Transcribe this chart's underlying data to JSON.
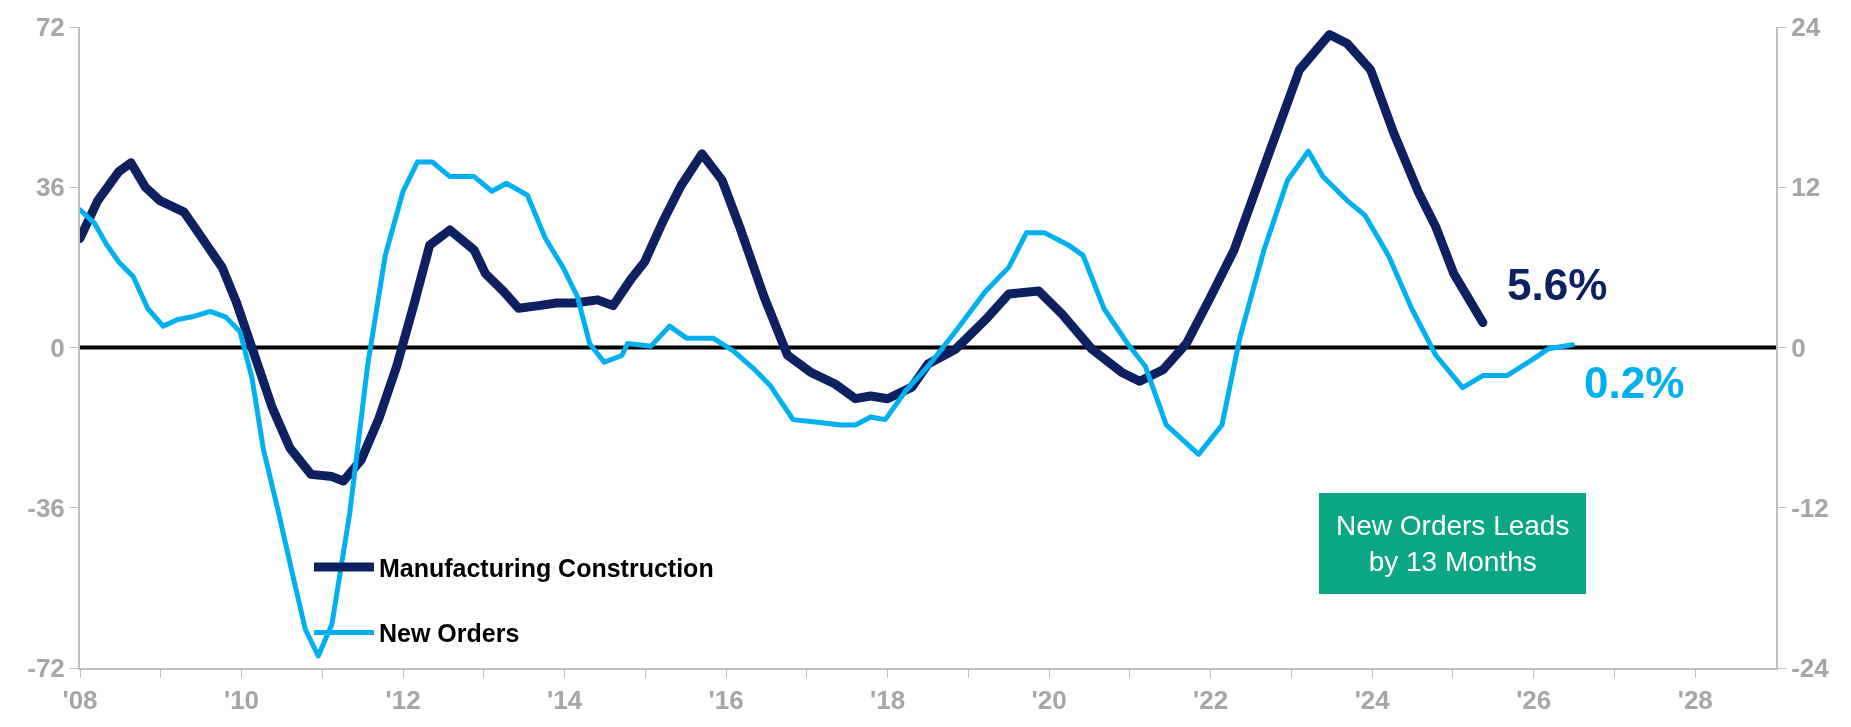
{
  "chart_data": {
    "type": "line",
    "xlim": [
      2008,
      2029
    ],
    "xticks": [
      {
        "value": 2008,
        "label": "'08"
      },
      {
        "value": 2009,
        "label": null
      },
      {
        "value": 2010,
        "label": "'10"
      },
      {
        "value": 2011,
        "label": null
      },
      {
        "value": 2012,
        "label": "'12"
      },
      {
        "value": 2013,
        "label": null
      },
      {
        "value": 2014,
        "label": "'14"
      },
      {
        "value": 2015,
        "label": null
      },
      {
        "value": 2016,
        "label": "'16"
      },
      {
        "value": 2017,
        "label": null
      },
      {
        "value": 2018,
        "label": "'18"
      },
      {
        "value": 2019,
        "label": null
      },
      {
        "value": 2020,
        "label": "'20"
      },
      {
        "value": 2021,
        "label": null
      },
      {
        "value": 2022,
        "label": "'22"
      },
      {
        "value": 2023,
        "label": null
      },
      {
        "value": 2024,
        "label": "'24"
      },
      {
        "value": 2025,
        "label": null
      },
      {
        "value": 2026,
        "label": "'26"
      },
      {
        "value": 2027,
        "label": null
      },
      {
        "value": 2028,
        "label": "'28"
      }
    ],
    "ylim": [
      -72,
      72
    ],
    "yticks": [
      -72,
      -36,
      0,
      36,
      72
    ],
    "y2lim": [
      -24,
      24
    ],
    "y2ticks": [
      -24,
      -12,
      0,
      12,
      24
    ],
    "grid": false,
    "legend": "bottom left",
    "marker": "none",
    "line_style": "solid",
    "ref_lines": [
      {
        "axis": "y",
        "value": 0,
        "label": null,
        "color": "#000000"
      }
    ],
    "annotations": [
      "New Orders Leads\nby 13 Months"
    ],
    "series": [
      {
        "name": "Manufacturing Construction",
        "color": "#0d2160",
        "x": [
          2008.0,
          2008.22,
          2008.48,
          2008.63,
          2008.81,
          2008.99,
          2009.29,
          2009.54,
          2009.76,
          2009.94,
          2010.16,
          2010.38,
          2010.6,
          2010.86,
          2011.12,
          2011.26,
          2011.48,
          2011.7,
          2011.92,
          2012.14,
          2012.33,
          2012.58,
          2012.88,
          2013.02,
          2013.24,
          2013.43,
          2013.68,
          2013.9,
          2014.12,
          2014.41,
          2014.6,
          2014.82,
          2014.99,
          2015.22,
          2015.44,
          2015.7,
          2015.95,
          2016.17,
          2016.47,
          2016.76,
          2017.05,
          2017.35,
          2017.6,
          2017.79,
          2018.0,
          2018.3,
          2018.5,
          2018.84,
          2019.21,
          2019.5,
          2019.87,
          2020.16,
          2020.53,
          2020.9,
          2021.12,
          2021.41,
          2021.7,
          2022.0,
          2022.29,
          2022.73,
          2023.1,
          2023.47,
          2023.69,
          2023.98,
          2024.27,
          2024.57,
          2024.79,
          2025.01,
          2025.37
        ],
        "values": [
          24.5,
          33,
          39.5,
          41.5,
          36,
          33,
          30.4,
          23.8,
          18,
          10,
          -1.7,
          -13.5,
          -22.6,
          -28.5,
          -29,
          -30,
          -25.3,
          -16,
          -4.3,
          10,
          23,
          26.4,
          21.9,
          16.6,
          12.7,
          8.8,
          9.4,
          10,
          10,
          10.7,
          9.4,
          15.3,
          19.2,
          28.4,
          36.3,
          43.5,
          37.6,
          27,
          11.4,
          -1.7,
          -5.6,
          -8.2,
          -11.5,
          -10.9,
          -11.5,
          -8.9,
          -3.7,
          -0.4,
          6.2,
          12,
          12.7,
          7.5,
          -0.4,
          -5.6,
          -7.6,
          -5,
          0.9,
          11.4,
          21.9,
          44,
          62.4,
          70.3,
          68.3,
          62.4,
          48,
          35,
          27,
          16.6,
          5.6
        ],
        "value_labels": [
          null,
          null,
          null,
          null,
          null,
          null,
          null,
          null,
          null,
          null,
          null,
          null,
          null,
          null,
          null,
          null,
          null,
          null,
          null,
          null,
          null,
          null,
          null,
          null,
          null,
          null,
          null,
          null,
          null,
          null,
          null,
          null,
          null,
          null,
          null,
          null,
          null,
          null,
          null,
          null,
          null,
          null,
          null,
          null,
          null,
          null,
          null,
          null,
          null,
          null,
          null,
          null,
          null,
          null,
          null,
          null,
          null,
          null,
          null,
          null,
          null,
          null,
          null,
          null,
          null,
          null,
          null,
          null,
          "5.6%"
        ]
      },
      {
        "name": "New Orders",
        "color": "#00b0f0",
        "axis": "y2",
        "x": [
          2008.0,
          2008.18,
          2008.33,
          2008.48,
          2008.66,
          2008.84,
          2009.03,
          2009.21,
          2009.39,
          2009.61,
          2009.8,
          2009.98,
          2010.13,
          2010.27,
          2010.46,
          2010.64,
          2010.79,
          2010.95,
          2011.12,
          2011.34,
          2011.56,
          2011.78,
          2012.0,
          2012.18,
          2012.36,
          2012.58,
          2012.88,
          2013.1,
          2013.28,
          2013.54,
          2013.76,
          2013.98,
          2014.16,
          2014.31,
          2014.49,
          2014.71,
          2014.78,
          2015.07,
          2015.3,
          2015.51,
          2015.84,
          2016.1,
          2016.36,
          2016.54,
          2016.83,
          2017.13,
          2017.42,
          2017.6,
          2017.79,
          2017.97,
          2018.23,
          2018.5,
          2018.84,
          2019.21,
          2019.5,
          2019.72,
          2019.94,
          2020.23,
          2020.42,
          2020.68,
          2020.97,
          2021.19,
          2021.45,
          2021.85,
          2022.14,
          2022.36,
          2022.66,
          2022.95,
          2023.21,
          2023.39,
          2023.69,
          2023.91,
          2024.2,
          2024.49,
          2024.79,
          2025.12,
          2025.37,
          2025.67,
          2025.96,
          2026.18,
          2026.48
        ],
        "values": [
          10.3,
          9.3,
          7.7,
          6.4,
          5.3,
          2.9,
          1.6,
          2.1,
          2.3,
          2.7,
          2.3,
          1.2,
          -2.3,
          -7.6,
          -12.4,
          -17.2,
          -21.1,
          -23.1,
          -20.7,
          -12.4,
          -1.4,
          6.9,
          11.7,
          13.9,
          13.9,
          12.8,
          12.8,
          11.7,
          12.3,
          11.4,
          8.2,
          6,
          3.8,
          0.3,
          -1.1,
          -0.6,
          0.3,
          0.1,
          1.6,
          0.7,
          0.7,
          -0.3,
          -1.7,
          -2.8,
          -5.4,
          -5.6,
          -5.8,
          -5.8,
          -5.2,
          -5.4,
          -3.2,
          -1.4,
          1.2,
          4.2,
          6,
          8.6,
          8.6,
          7.7,
          6.9,
          2.9,
          0.3,
          -1.4,
          -5.8,
          -8,
          -5.8,
          0.7,
          7.3,
          12.5,
          14.7,
          12.8,
          11,
          9.9,
          6.9,
          2.9,
          -0.6,
          -3,
          -2.1,
          -2.1,
          -1,
          -0.1,
          0.2
        ],
        "value_labels": [
          null,
          null,
          null,
          null,
          null,
          null,
          null,
          null,
          null,
          null,
          null,
          null,
          null,
          null,
          null,
          null,
          null,
          null,
          null,
          null,
          null,
          null,
          null,
          null,
          null,
          null,
          null,
          null,
          null,
          null,
          null,
          null,
          null,
          null,
          null,
          null,
          null,
          null,
          null,
          null,
          null,
          null,
          null,
          null,
          null,
          null,
          null,
          null,
          null,
          null,
          null,
          null,
          null,
          null,
          null,
          null,
          null,
          null,
          null,
          null,
          null,
          null,
          null,
          null,
          null,
          null,
          null,
          null,
          null,
          null,
          null,
          null,
          null,
          null,
          null,
          null,
          null,
          null,
          null,
          null,
          "0.2%"
        ]
      }
    ]
  }
}
